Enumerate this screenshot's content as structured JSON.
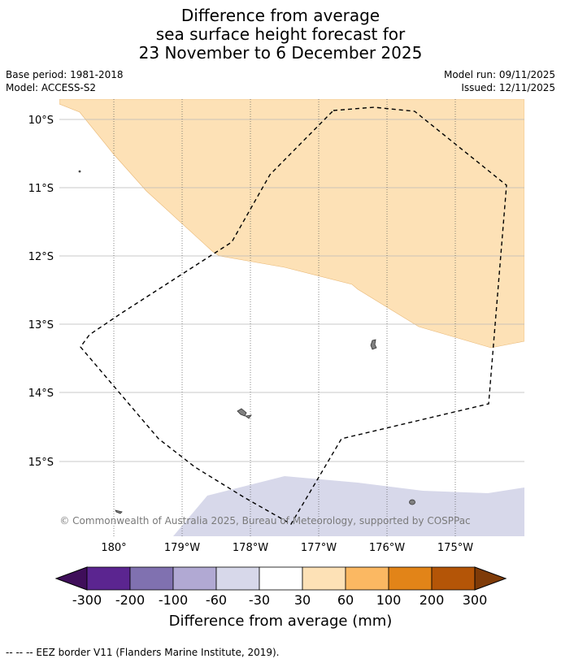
{
  "title_lines": [
    "Difference from average",
    "sea surface height forecast for",
    "23 November to 6 December 2025"
  ],
  "meta": {
    "base_period": "Base period: 1981-2018",
    "model": "Model: ACCESS-S2",
    "model_run": "Model run: 09/11/2025",
    "issued": "Issued: 12/11/2025"
  },
  "map": {
    "lat_labels": [
      "10°S",
      "11°S",
      "12°S",
      "13°S",
      "14°S",
      "15°S"
    ],
    "lon_labels": [
      "180°",
      "179°W",
      "178°W",
      "177°W",
      "176°W",
      "175°W"
    ],
    "copyright": "© Commonwealth of Australia 2025, Bureau of Meteorology, supported by COSPPac",
    "colors": {
      "positive_30_60": "#fde1b6",
      "negative_60_30": "#d7d8ea",
      "land": "#808080"
    }
  },
  "colorbar": {
    "ticks": [
      "-300",
      "-200",
      "-100",
      "-60",
      "-30",
      "30",
      "60",
      "100",
      "200",
      "300"
    ],
    "colors": [
      "#3f0e5a",
      "#5b2590",
      "#8071b0",
      "#b1a9d3",
      "#d7d8ea",
      "#ffffff",
      "#fde1b6",
      "#fbb862",
      "#e28418",
      "#b45507",
      "#7f3b08"
    ],
    "label": "Difference from average (mm)"
  },
  "footer": "--  --  -- EEZ border V11 (Flanders Marine Institute, 2019)."
}
